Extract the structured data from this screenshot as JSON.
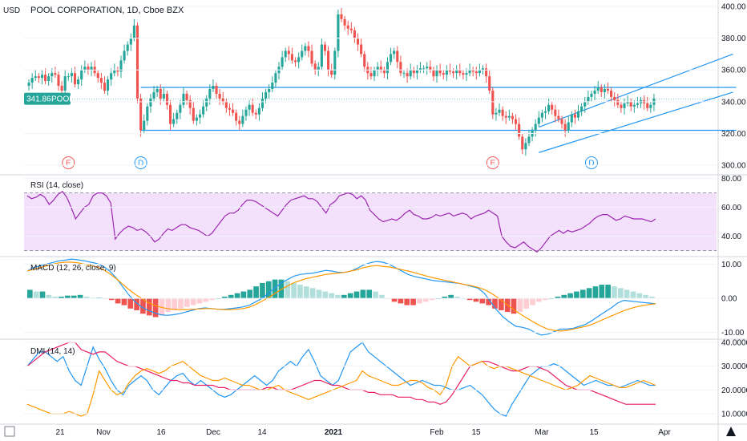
{
  "chart_data": [
    {
      "type": "candlestick",
      "pane": "price",
      "title": "POOL CORPORATION, 1D, Cboe BZX",
      "ylabel": "USD",
      "ylim": [
        295,
        402
      ],
      "yticks": [
        "400.00",
        "380.00",
        "360.00",
        "340.00",
        "320.00",
        "300.00"
      ],
      "last_price": {
        "label": "POOL",
        "value": "341.86",
        "color": "#26a69a"
      },
      "colors": {
        "up": "#26a69a",
        "down": "#ef5350",
        "line": "#2196f3"
      },
      "x_labels": [
        "21",
        "Nov",
        "16",
        "Dec",
        "14",
        "2021",
        "Feb",
        "15",
        "Mar",
        "15",
        "Apr"
      ],
      "events": [
        {
          "bar": 12,
          "text": "E",
          "color": "#ef5350"
        },
        {
          "bar": 34,
          "text": "D",
          "color": "#2196f3"
        },
        {
          "bar": 141,
          "text": "E",
          "color": "#ef5350"
        },
        {
          "bar": 171,
          "text": "D",
          "color": "#2196f3"
        }
      ],
      "trendlines": [
        {
          "x1": 34,
          "y1": 349,
          "x2": 215,
          "y2": 349
        },
        {
          "x1": 34,
          "y1": 322,
          "x2": 215,
          "y2": 322
        },
        {
          "x1": 155,
          "y1": 324,
          "x2": 214,
          "y2": 370
        },
        {
          "x1": 155,
          "y1": 308,
          "x2": 214,
          "y2": 346
        }
      ],
      "closes": [
        352,
        355,
        356,
        355,
        357,
        353,
        356,
        358,
        357,
        350,
        347,
        356,
        356,
        358,
        351,
        354,
        360,
        362,
        360,
        362,
        358,
        355,
        352,
        347,
        354,
        358,
        360,
        359,
        366,
        372,
        376,
        380,
        388,
        342,
        322,
        328,
        337,
        342,
        346,
        348,
        342,
        345,
        338,
        326,
        329,
        333,
        338,
        345,
        341,
        336,
        328,
        330,
        332,
        337,
        342,
        348,
        350,
        345,
        342,
        340,
        336,
        335,
        333,
        328,
        326,
        331,
        335,
        338,
        333,
        332,
        336,
        342,
        346,
        348,
        352,
        358,
        362,
        368,
        372,
        370,
        366,
        365,
        368,
        372,
        375,
        372,
        364,
        360,
        362,
        376,
        372,
        360,
        357,
        372,
        395,
        392,
        388,
        386,
        385,
        380,
        376,
        370,
        362,
        358,
        356,
        360,
        362,
        360,
        358,
        365,
        370,
        372,
        365,
        358,
        358,
        356,
        360,
        358,
        360,
        361,
        361,
        362,
        360,
        356,
        360,
        358,
        357,
        360,
        359,
        358,
        360,
        358,
        357,
        358,
        360,
        359,
        358,
        360,
        361,
        356,
        347,
        332,
        333,
        335,
        331,
        330,
        331,
        329,
        326,
        318,
        310,
        314,
        318,
        322,
        326,
        330,
        333,
        334,
        338,
        335,
        331,
        329,
        326,
        322,
        327,
        332,
        330,
        334,
        337,
        340,
        343,
        345,
        347,
        349,
        346,
        348,
        347,
        343,
        341,
        338,
        336,
        339,
        340,
        337,
        338,
        339,
        341,
        339,
        336,
        338,
        342
      ]
    },
    {
      "type": "line",
      "pane": "rsi",
      "title": "RSI (14, close)",
      "ylim": [
        27,
        82
      ],
      "yticks": [
        "80.00",
        "60.00",
        "40.00"
      ],
      "bands": {
        "upper": 70,
        "lower": 30,
        "fill": "#f3e0fb"
      },
      "series": [
        {
          "values": [
            68,
            66,
            67,
            69,
            67,
            62,
            65,
            69,
            71,
            67,
            60,
            52,
            56,
            60,
            62,
            68,
            70,
            70,
            68,
            63,
            38,
            42,
            45,
            47,
            46,
            44,
            45,
            43,
            40,
            36,
            38,
            42,
            45,
            44,
            46,
            48,
            48,
            46,
            45,
            44,
            42,
            40,
            42,
            46,
            50,
            54,
            56,
            56,
            58,
            62,
            65,
            65,
            64,
            62,
            60,
            58,
            56,
            54,
            58,
            62,
            65,
            66,
            67,
            68,
            66,
            66,
            64,
            60,
            56,
            62,
            64,
            68,
            69,
            70,
            69,
            66,
            68,
            65,
            58,
            55,
            52,
            50,
            51,
            52,
            51,
            53,
            56,
            58,
            55,
            54,
            52,
            52,
            53,
            55,
            54,
            55,
            56,
            54,
            55,
            56,
            55,
            52,
            54,
            55,
            56,
            58,
            56,
            54,
            40,
            36,
            33,
            32,
            34,
            36,
            33,
            31,
            29,
            32,
            36,
            40,
            42,
            44,
            42,
            44,
            43,
            44,
            45,
            47,
            49,
            52,
            54,
            55,
            55,
            53,
            51,
            52,
            54,
            53,
            52,
            52,
            52,
            51,
            50,
            52
          ]
        }
      ],
      "color": "#9c27b0"
    },
    {
      "type": "histogram",
      "pane": "macd",
      "title": "MACD (12, 26, close, 9)",
      "ylim": [
        -11.5,
        12
      ],
      "yticks": [
        "10.00",
        "0.00",
        "-10.00"
      ],
      "series": [
        {
          "values": [
            8,
            9,
            9.5,
            10,
            10.5,
            11,
            11.2,
            11.5,
            11.3,
            11,
            10.6,
            10.2,
            9.4,
            8,
            6,
            3.5,
            1,
            -1,
            -2.5,
            -3.5,
            -4.2,
            -4.8,
            -5,
            -4.8,
            -4.5,
            -4,
            -3.5,
            -3,
            -2.8,
            -3,
            -3.2,
            -3.2,
            -3,
            -2.8,
            -2.5,
            -2,
            -1,
            0,
            1.5,
            3,
            4.5,
            5.5,
            6.5,
            7,
            7.2,
            7.4,
            7.8,
            8.2,
            8,
            7.6,
            7.6,
            8,
            8.8,
            9.8,
            10.4,
            10.8,
            10.6,
            10,
            9,
            8,
            7,
            6.4,
            6,
            5.6,
            5.2,
            5,
            4.8,
            4.6,
            4.4,
            4,
            3.5,
            3,
            1.5,
            -1,
            -3.5,
            -5.5,
            -7,
            -8.2,
            -8.5,
            -9,
            -10,
            -10.8,
            -10.5,
            -9.8,
            -9,
            -9,
            -8.8,
            -8.2,
            -7.6,
            -6.5,
            -5.2,
            -4,
            -2.8,
            -1.4,
            -0.6,
            -0.8,
            -1,
            -1.2,
            -1.4,
            -1.6
          ]
        },
        {
          "values": [
            8,
            8.5,
            9,
            9.5,
            10,
            10.4,
            10.6,
            10.6,
            10.4,
            10,
            9.6,
            9.2,
            8.4,
            7.2,
            5.8,
            4.2,
            2.6,
            1.2,
            0,
            -1.2,
            -2,
            -2.6,
            -3,
            -3.2,
            -3.3,
            -3.3,
            -3.2,
            -3.1,
            -3,
            -3,
            -3.2,
            -3.3,
            -3.3,
            -3.2,
            -3,
            -2.6,
            -1.8,
            -0.8,
            0.2,
            1.4,
            2.6,
            3.6,
            4.6,
            5.2,
            5.8,
            6.2,
            6.6,
            7,
            7.2,
            7.4,
            7.6,
            8,
            8.4,
            9,
            9.4,
            9.6,
            9.4,
            9.2,
            8.8,
            8.4,
            8,
            7.5,
            7,
            6.5,
            6,
            5.6,
            5.2,
            4.8,
            4.4,
            4,
            3.7,
            3.2,
            2.6,
            1.6,
            0.4,
            -1,
            -2.4,
            -3.8,
            -5,
            -6.1,
            -7.2,
            -8.2,
            -9,
            -9.4,
            -9.6,
            -9.4,
            -9,
            -8.6,
            -8.2,
            -7.6,
            -6.8,
            -6,
            -5.2,
            -4.4,
            -3.6,
            -3,
            -2.5,
            -2.1,
            -1.8,
            -1.6
          ]
        }
      ],
      "histogram": [
        2.5,
        2,
        2,
        1,
        0.5,
        0.5,
        0.8,
        0.8,
        1,
        0.5,
        0.2,
        0.2,
        0,
        -0.5,
        -1.5,
        -2,
        -3,
        -3.5,
        -4.5,
        -5,
        -5.5,
        -5,
        -4,
        -3.5,
        -3,
        -2.5,
        -2,
        -1.5,
        -1,
        -0.5,
        0,
        0.5,
        1,
        1.5,
        2,
        2.5,
        3.5,
        4.5,
        5,
        5.5,
        5.5,
        5,
        4.5,
        4,
        3.5,
        3,
        2.5,
        2,
        1.5,
        1,
        1,
        1.5,
        2,
        2.5,
        2.5,
        2,
        1,
        0,
        -1,
        -1.5,
        -2,
        -2,
        -1.5,
        -1,
        -0.5,
        0,
        0.5,
        1,
        0.5,
        0,
        -0.5,
        -1,
        -1.5,
        -2,
        -3,
        -3.5,
        -4,
        -4.5,
        -4,
        -3,
        -2,
        -1,
        -0.5,
        0,
        0.5,
        1,
        1.5,
        2,
        2.5,
        3,
        3.5,
        4,
        4,
        3.5,
        3,
        2.5,
        2,
        1.5,
        1,
        0.5
      ],
      "colors": {
        "macd": "#2196f3",
        "signal": "#ff9800",
        "up_strong": "#26a69a",
        "up_weak": "#b2dfdb",
        "down_strong": "#ef5350",
        "down_weak": "#ffcdd2"
      }
    },
    {
      "type": "line",
      "pane": "dmi",
      "title": "DMI (14, 14)",
      "ylim": [
        6,
        41
      ],
      "yticks": [
        "40.0000",
        "30.0000",
        "20.0000",
        "10.0000"
      ],
      "series": [
        {
          "values": [
            30,
            33,
            36,
            36,
            34,
            32,
            34,
            28,
            24,
            22,
            30,
            38,
            33,
            29,
            24,
            20,
            18,
            22,
            24,
            26,
            24,
            20,
            18,
            21,
            24,
            26,
            27,
            24,
            22,
            24,
            22,
            20,
            18,
            17,
            18,
            20,
            22,
            24,
            26,
            24,
            22,
            24,
            28,
            30,
            32,
            30,
            34,
            37,
            32,
            26,
            24,
            22,
            24,
            30,
            36,
            38,
            40,
            36,
            34,
            32,
            30,
            28,
            26,
            24,
            22,
            23,
            24,
            23,
            22,
            22,
            21,
            20,
            20,
            21,
            22,
            20,
            18,
            15,
            12,
            10,
            9,
            14,
            18,
            22,
            26,
            28,
            30,
            30,
            31,
            30,
            28,
            26,
            24,
            22,
            23,
            24,
            23,
            22,
            22,
            21,
            22,
            23,
            24,
            23,
            22,
            22
          ]
        },
        {
          "values": [
            30,
            32,
            34,
            36,
            37,
            38,
            39,
            40,
            40,
            37,
            36,
            35,
            36,
            36,
            34,
            32,
            31,
            30,
            30,
            29,
            28,
            27,
            26,
            25,
            24,
            24,
            23,
            23,
            22,
            22,
            22,
            22,
            21,
            21,
            20,
            20,
            20,
            20,
            20,
            20,
            21,
            21,
            20,
            20,
            20,
            21,
            22,
            23,
            24,
            24,
            23,
            22,
            22,
            21,
            20,
            20,
            20,
            19,
            19,
            18,
            18,
            18,
            17,
            17,
            17,
            16,
            16,
            15,
            15,
            14,
            15,
            18,
            22,
            26,
            30,
            31,
            32,
            32,
            31,
            30,
            29,
            28,
            28,
            29,
            30,
            30,
            29,
            28,
            26,
            24,
            22,
            21,
            20,
            20,
            20,
            19,
            18,
            17,
            16,
            15,
            14,
            14,
            14,
            14,
            14,
            14
          ]
        },
        {
          "values": [
            14,
            13,
            12,
            11,
            10,
            10,
            10,
            11,
            10,
            9,
            10,
            18,
            28,
            24,
            20,
            18,
            19,
            23,
            26,
            28,
            29,
            28,
            27,
            28,
            30,
            31,
            32,
            30,
            28,
            26,
            25,
            24,
            24,
            25,
            24,
            23,
            22,
            22,
            21,
            20,
            20,
            21,
            22,
            20,
            19,
            18,
            17,
            16,
            17,
            18,
            19,
            20,
            21,
            22,
            23,
            24,
            28,
            26,
            25,
            24,
            23,
            22,
            22,
            23,
            24,
            24,
            23,
            21,
            20,
            18,
            22,
            30,
            34,
            32,
            30,
            31,
            32,
            30,
            29,
            30,
            30,
            29,
            28,
            27,
            26,
            25,
            24,
            23,
            22,
            21,
            20,
            21,
            22,
            24,
            26,
            25,
            24,
            23,
            22,
            21,
            21,
            22,
            23,
            24,
            23,
            22
          ]
        }
      ],
      "colors": [
        "#2196f3",
        "#e91e63",
        "#ff9800"
      ]
    }
  ]
}
